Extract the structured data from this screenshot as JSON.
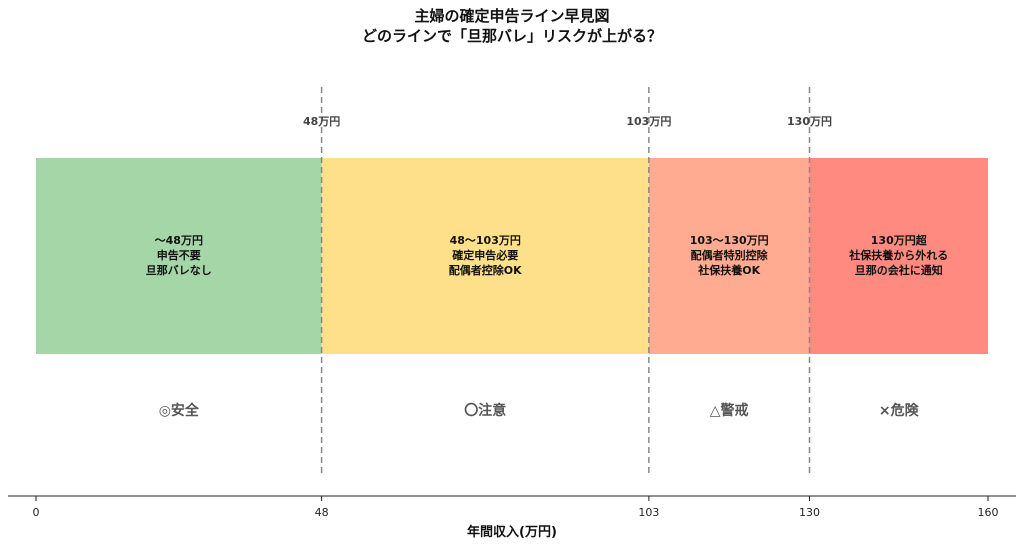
{
  "title_line1": "主婦の確定申告ライン早見図",
  "title_line2": "どのラインで「旦那バレ」リスクが上がる？",
  "chart_data": {
    "type": "bar",
    "orientation": "horizontal-segments",
    "xlabel": "年間収入(万円)",
    "xlim": [
      0,
      160
    ],
    "xticks": [
      0,
      48,
      103,
      130,
      160
    ],
    "grid": false,
    "segments": [
      {
        "from": 0,
        "to": 48,
        "color": "#a5d6a7",
        "text": [
          "〜48万円",
          "申告不要",
          "旦那バレなし"
        ],
        "status": "◎安全"
      },
      {
        "from": 48,
        "to": 103,
        "color": "#ffe08a",
        "text": [
          "48〜103万円",
          "確定申告必要",
          "配偶者控除OK"
        ],
        "status": "〇注意"
      },
      {
        "from": 103,
        "to": 130,
        "color": "#ffab91",
        "text": [
          "103〜130万円",
          "配偶者特別控除",
          "社保扶養OK"
        ],
        "status": "△警戒"
      },
      {
        "from": 130,
        "to": 160,
        "color": "#ff8a80",
        "text": [
          "130万円超",
          "社保扶養から外れる",
          "旦那の会社に通知"
        ],
        "status": "×危険"
      }
    ],
    "thresholds": [
      {
        "value": 48,
        "label": "48万円"
      },
      {
        "value": 103,
        "label": "103万円"
      },
      {
        "value": 130,
        "label": "130万円"
      }
    ]
  }
}
